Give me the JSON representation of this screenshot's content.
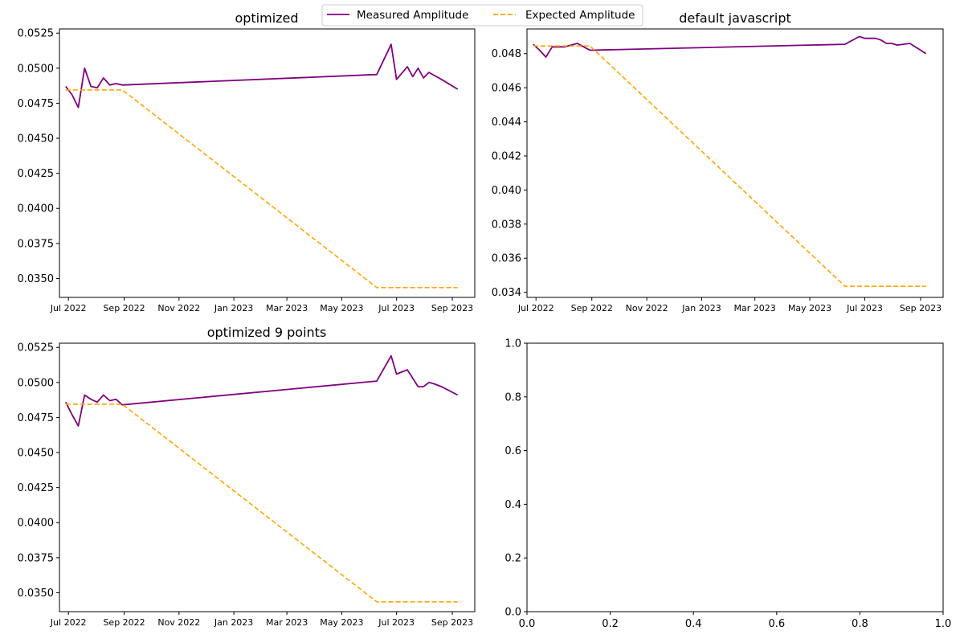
{
  "colors": {
    "measured": "#800080",
    "expected": "#FFA500",
    "axes": "#000000",
    "background": "#ffffff"
  },
  "legend": {
    "placement": "top-center",
    "entries": [
      {
        "label": "Measured Amplitude",
        "style": "solid",
        "color": "#800080"
      },
      {
        "label": "Expected Amplitude",
        "style": "dashed",
        "color": "#FFA500"
      }
    ]
  },
  "chart_data": [
    {
      "type": "line",
      "title": "optimized",
      "xlabel": "",
      "ylabel": "",
      "x_type": "date",
      "xlim": [
        "2022-06-21",
        "2023-09-26"
      ],
      "ylim": [
        0.03365,
        0.0528
      ],
      "xticks": [
        "Jul 2022",
        "Sep 2022",
        "Nov 2022",
        "Jan 2023",
        "Mar 2023",
        "May 2023",
        "Jul 2023",
        "Sep 2023"
      ],
      "yticks": [
        "0.0350",
        "0.0375",
        "0.0400",
        "0.0425",
        "0.0450",
        "0.0475",
        "0.0500",
        "0.0525"
      ],
      "grid": false,
      "series": [
        {
          "name": "Measured Amplitude",
          "style": "solid",
          "x": [
            "2022-06-28",
            "2022-07-05",
            "2022-07-12",
            "2022-07-19",
            "2022-07-26",
            "2022-08-02",
            "2022-08-09",
            "2022-08-16",
            "2022-08-23",
            "2022-08-30",
            "2023-06-09",
            "2023-06-25",
            "2023-07-01",
            "2023-07-13",
            "2023-07-19",
            "2023-07-25",
            "2023-07-31",
            "2023-08-06",
            "2023-08-20",
            "2023-09-07"
          ],
          "y": [
            0.0487,
            0.0481,
            0.0472,
            0.05,
            0.0487,
            0.0486,
            0.0493,
            0.0488,
            0.0489,
            0.0488,
            0.04955,
            0.0517,
            0.0492,
            0.0501,
            0.0494,
            0.05,
            0.0493,
            0.0497,
            0.0492,
            0.0485
          ]
        },
        {
          "name": "Expected Amplitude",
          "style": "dashed",
          "x": [
            "2022-06-28",
            "2022-08-30",
            "2023-06-09",
            "2023-09-07"
          ],
          "y": [
            0.04845,
            0.04845,
            0.03435,
            0.03435
          ]
        }
      ]
    },
    {
      "type": "line",
      "title": "default javascript",
      "xlabel": "",
      "ylabel": "",
      "x_type": "date",
      "xlim": [
        "2022-06-21",
        "2023-09-26"
      ],
      "ylim": [
        0.0337,
        0.04945
      ],
      "xticks": [
        "Jul 2022",
        "Sep 2022",
        "Nov 2022",
        "Jan 2023",
        "Mar 2023",
        "May 2023",
        "Jul 2023",
        "Sep 2023"
      ],
      "yticks": [
        "0.034",
        "0.036",
        "0.038",
        "0.040",
        "0.042",
        "0.044",
        "0.046",
        "0.048"
      ],
      "grid": false,
      "series": [
        {
          "name": "Measured Amplitude",
          "style": "solid",
          "x": [
            "2022-06-28",
            "2022-07-05",
            "2022-07-12",
            "2022-07-19",
            "2022-07-26",
            "2022-08-02",
            "2022-08-09",
            "2022-08-16",
            "2022-08-23",
            "2022-08-30",
            "2023-06-09",
            "2023-06-25",
            "2023-07-01",
            "2023-07-13",
            "2023-07-19",
            "2023-07-25",
            "2023-07-31",
            "2023-08-06",
            "2023-08-20",
            "2023-09-07"
          ],
          "y": [
            0.04855,
            0.0482,
            0.0478,
            0.0484,
            0.0484,
            0.0484,
            0.0485,
            0.0486,
            0.0484,
            0.0482,
            0.04855,
            0.049,
            0.0489,
            0.0489,
            0.0488,
            0.0486,
            0.0486,
            0.0485,
            0.0486,
            0.048
          ]
        },
        {
          "name": "Expected Amplitude",
          "style": "dashed",
          "x": [
            "2022-06-28",
            "2022-08-30",
            "2023-06-09",
            "2023-09-07"
          ],
          "y": [
            0.04845,
            0.04845,
            0.03435,
            0.03435
          ]
        }
      ]
    },
    {
      "type": "line",
      "title": "optimized 9 points",
      "xlabel": "",
      "ylabel": "",
      "x_type": "date",
      "xlim": [
        "2022-06-21",
        "2023-09-26"
      ],
      "ylim": [
        0.03365,
        0.0528
      ],
      "xticks": [
        "Jul 2022",
        "Sep 2022",
        "Nov 2022",
        "Jan 2023",
        "Mar 2023",
        "May 2023",
        "Jul 2023",
        "Sep 2023"
      ],
      "yticks": [
        "0.0350",
        "0.0375",
        "0.0400",
        "0.0425",
        "0.0450",
        "0.0475",
        "0.0500",
        "0.0525"
      ],
      "grid": false,
      "series": [
        {
          "name": "Measured Amplitude",
          "style": "solid",
          "x": [
            "2022-06-28",
            "2022-07-05",
            "2022-07-12",
            "2022-07-19",
            "2022-07-26",
            "2022-08-02",
            "2022-08-09",
            "2022-08-16",
            "2022-08-23",
            "2022-08-30",
            "2023-06-09",
            "2023-06-25",
            "2023-07-01",
            "2023-07-13",
            "2023-07-25",
            "2023-07-31",
            "2023-08-06",
            "2023-08-12",
            "2023-08-20",
            "2023-09-07"
          ],
          "y": [
            0.0486,
            0.0477,
            0.0469,
            0.0491,
            0.0488,
            0.0486,
            0.0491,
            0.0487,
            0.0488,
            0.0484,
            0.0501,
            0.0519,
            0.0506,
            0.0509,
            0.0497,
            0.0497,
            0.05,
            0.0499,
            0.0497,
            0.0491
          ]
        },
        {
          "name": "Expected Amplitude",
          "style": "dashed",
          "x": [
            "2022-06-28",
            "2022-08-30",
            "2023-06-09",
            "2023-09-07"
          ],
          "y": [
            0.04845,
            0.04845,
            0.03435,
            0.03435
          ]
        }
      ]
    },
    {
      "type": "line",
      "title": "",
      "xlabel": "",
      "ylabel": "",
      "xlim": [
        0,
        1
      ],
      "ylim": [
        0,
        1
      ],
      "xticks": [
        "0.0",
        "0.2",
        "0.4",
        "0.6",
        "0.8",
        "1.0"
      ],
      "yticks": [
        "0.0",
        "0.2",
        "0.4",
        "0.6",
        "0.8",
        "1.0"
      ],
      "grid": false,
      "series": []
    }
  ]
}
